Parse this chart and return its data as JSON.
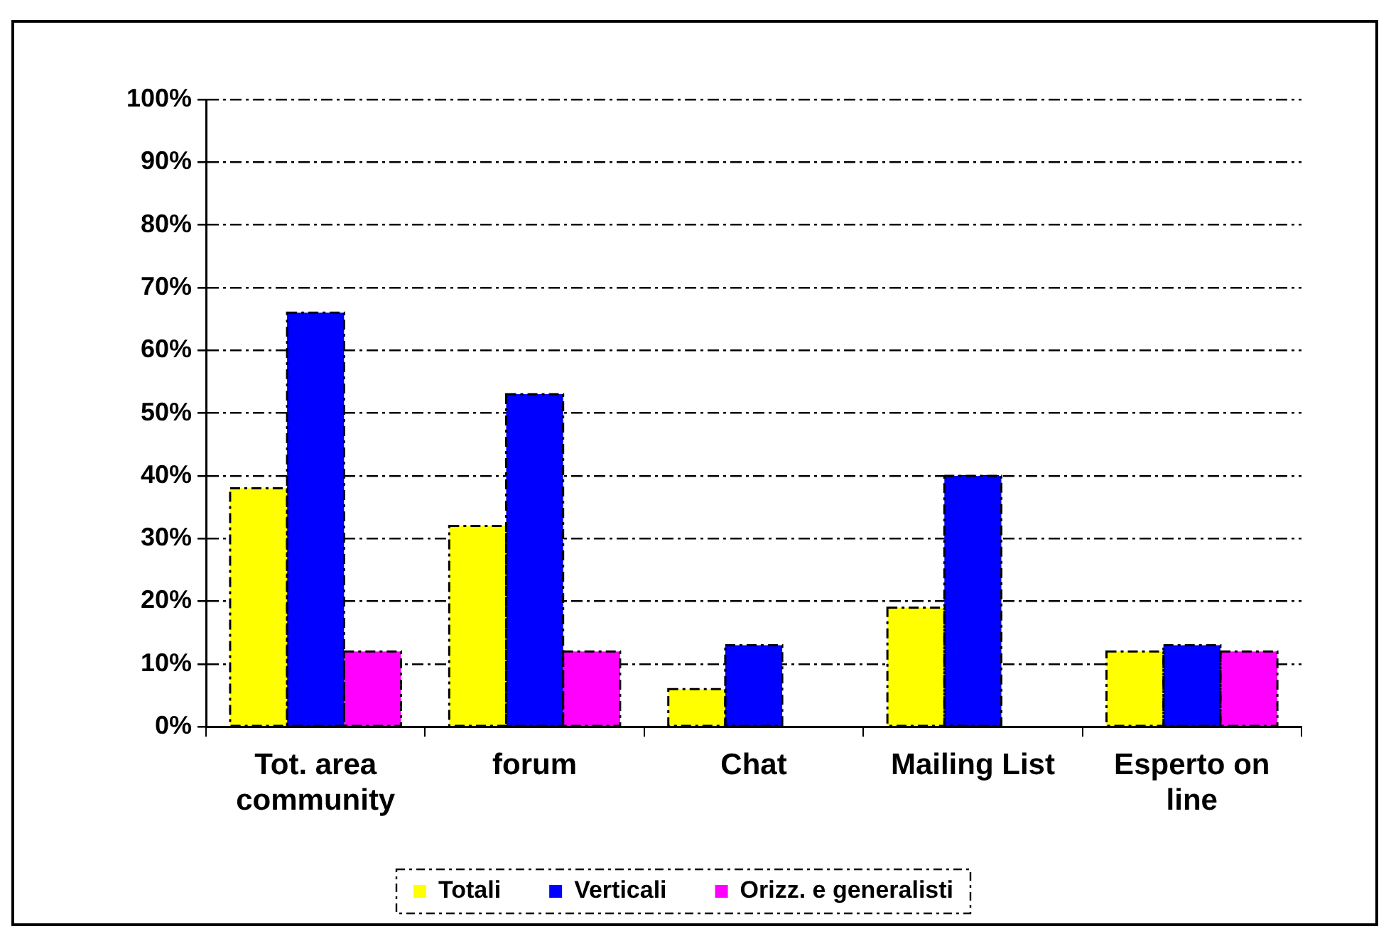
{
  "chart_data": {
    "type": "bar",
    "categories": [
      "Tot. area community",
      "forum",
      "Chat",
      "Mailing List",
      "Esperto on line"
    ],
    "series": [
      {
        "name": "Totali",
        "color": "#ffff00",
        "values": [
          38,
          32,
          6,
          19,
          12
        ]
      },
      {
        "name": "Verticali",
        "color": "#0000ff",
        "values": [
          66,
          53,
          13,
          40,
          13
        ]
      },
      {
        "name": "Orizz. e generalisti",
        "color": "#ff00ff",
        "values": [
          12,
          12,
          0,
          0,
          12
        ]
      }
    ],
    "ylim": [
      0,
      100
    ],
    "yticks": [
      {
        "value": 0,
        "label": "0%"
      },
      {
        "value": 10,
        "label": "10%"
      },
      {
        "value": 20,
        "label": "20%"
      },
      {
        "value": 30,
        "label": "30%"
      },
      {
        "value": 40,
        "label": "40%"
      },
      {
        "value": 50,
        "label": "50%"
      },
      {
        "value": 60,
        "label": "60%"
      },
      {
        "value": 70,
        "label": "70%"
      },
      {
        "value": 80,
        "label": "80%"
      },
      {
        "value": 90,
        "label": "90%"
      },
      {
        "value": 100,
        "label": "100%"
      }
    ],
    "grid": "y",
    "legend": "bottom"
  }
}
